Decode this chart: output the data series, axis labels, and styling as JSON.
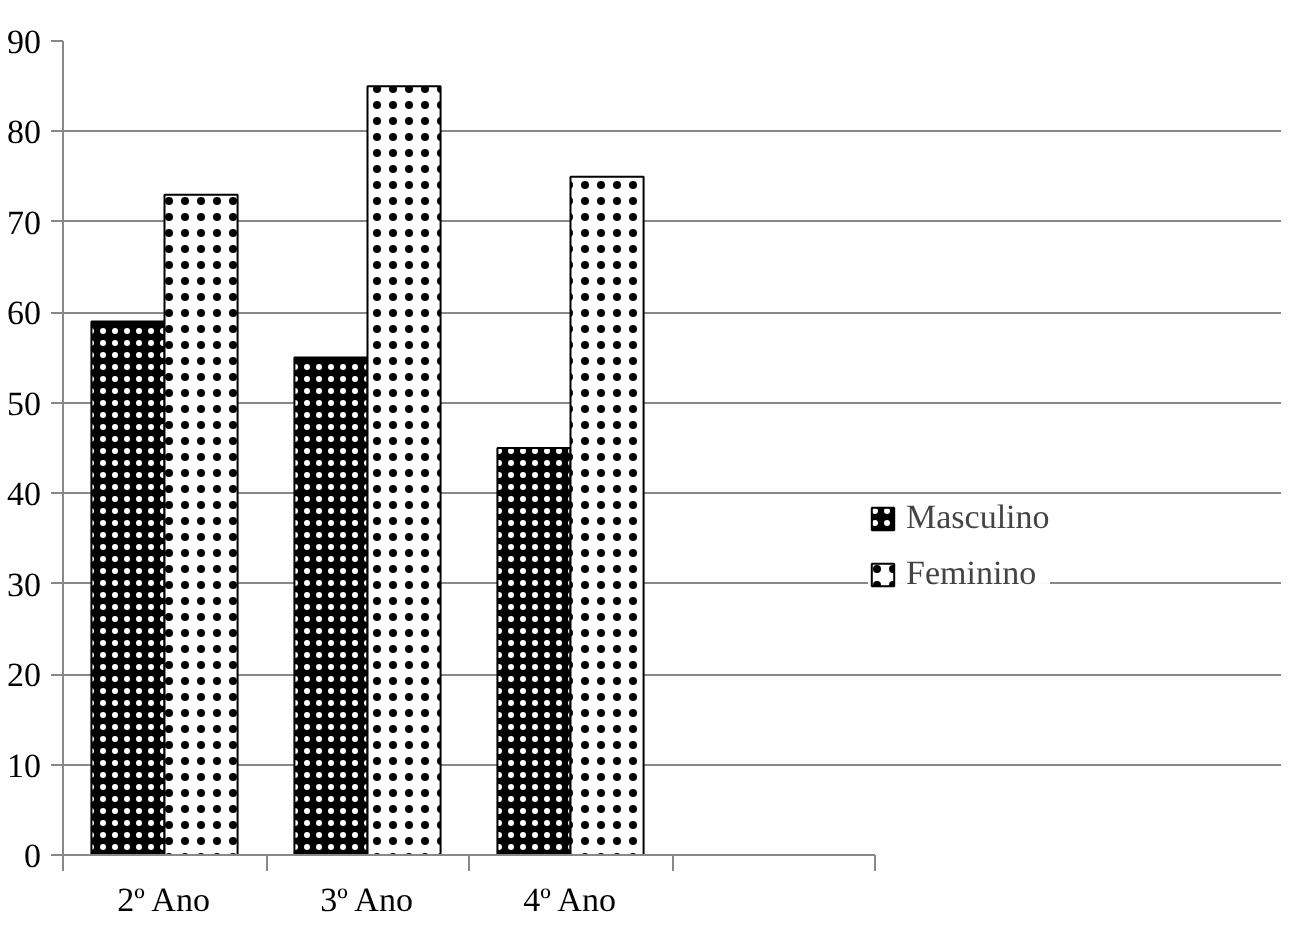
{
  "chart_data": {
    "type": "bar",
    "categories": [
      "2º Ano",
      "3º Ano",
      "4º Ano",
      null
    ],
    "series": [
      {
        "name": "Masculino",
        "color": "#000000",
        "values": [
          59,
          55,
          45,
          null
        ]
      },
      {
        "name": "Feminino",
        "color": "#ffffff",
        "values": [
          73,
          85,
          75,
          null
        ]
      }
    ],
    "ylim": [
      0,
      90
    ],
    "yticks": [
      0,
      10,
      20,
      30,
      40,
      50,
      60,
      70,
      80,
      90
    ],
    "grid": "y",
    "legend": "right"
  }
}
